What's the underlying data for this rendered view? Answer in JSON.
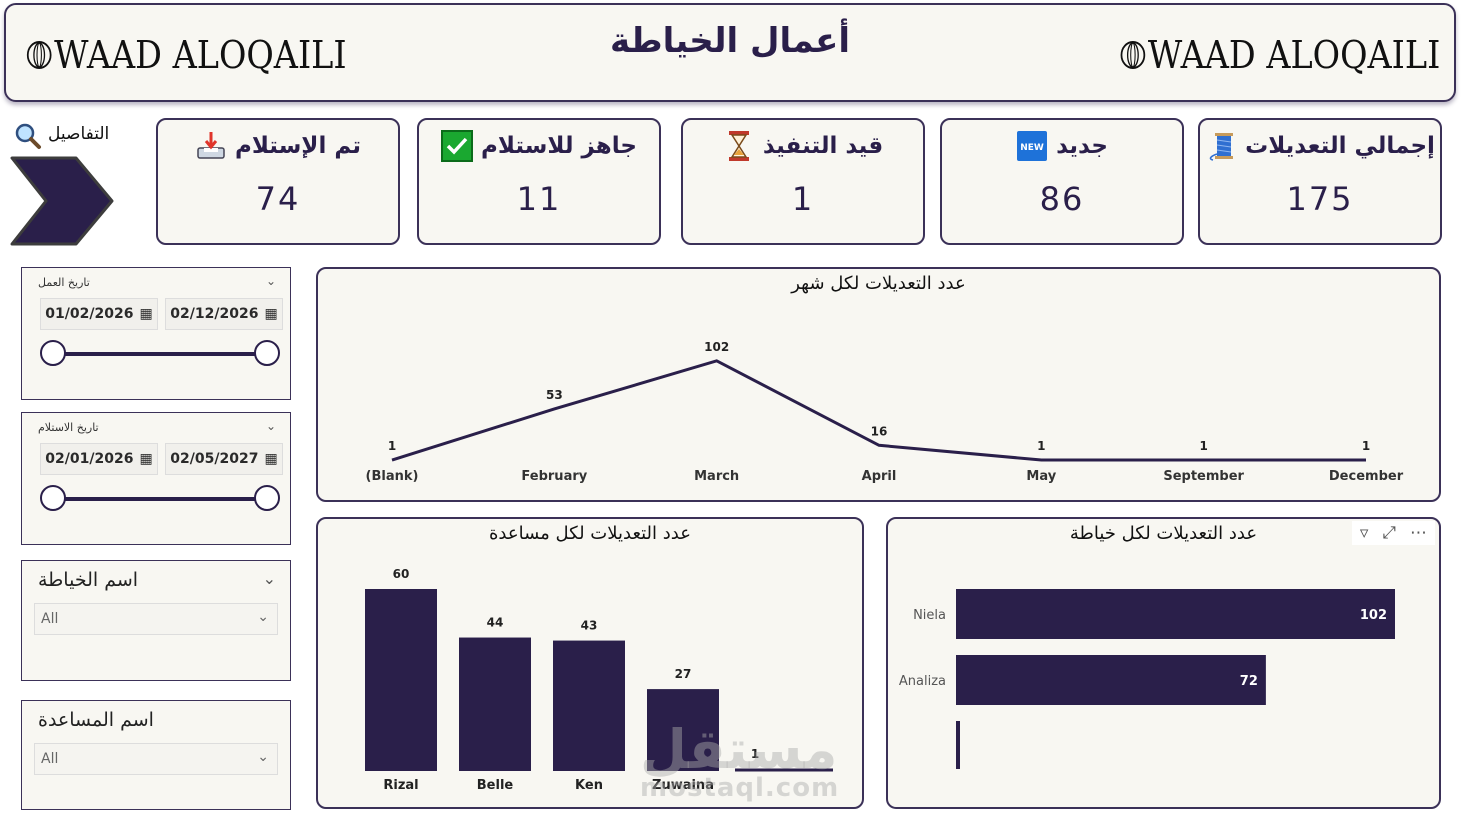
{
  "header": {
    "title": "أعمال الخياطة",
    "logo_left": "WAAD ALOQAILI",
    "logo_right": "WAAD ALOQAILI"
  },
  "details": {
    "label": "التفاصيل"
  },
  "kpis": [
    {
      "label": "تم الإستلام",
      "value": "74",
      "icon": "inbox-tray-icon"
    },
    {
      "label": "جاهز للاستلام",
      "value": "11",
      "icon": "check-box-icon"
    },
    {
      "label": "قيد التنفيذ",
      "value": "1",
      "icon": "hourglass-icon"
    },
    {
      "label": "جديد",
      "value": "86",
      "icon": "new-badge-icon"
    },
    {
      "label": "إجمالي التعديلات",
      "value": "175",
      "icon": "thread-spool-icon"
    }
  ],
  "slicers": {
    "work_date": {
      "label": "تاريخ العمل",
      "from": "01/02/2026",
      "to": "02/12/2026"
    },
    "receive_date": {
      "label": "تاريخ الاستلام",
      "from": "02/01/2026",
      "to": "02/05/2027"
    },
    "tailor": {
      "label": "اسم الخياطة",
      "value": "All"
    },
    "assistant": {
      "label": "اسم المساعدة",
      "value": "All"
    }
  },
  "colors": {
    "primary": "#2a1f4a",
    "panel": "#f8f7f2"
  },
  "chart_data": [
    {
      "type": "line",
      "title": "عدد التعديلات لكل شهر",
      "categories": [
        "(Blank)",
        "February",
        "March",
        "April",
        "May",
        "September",
        "December"
      ],
      "values": [
        1,
        53,
        102,
        16,
        1,
        1,
        1
      ],
      "ylim": [
        0,
        110
      ]
    },
    {
      "type": "bar",
      "title": "عدد التعديلات لكل مساعدة",
      "categories": [
        "Rizal",
        "Belle",
        "Ken",
        "Zuwaina",
        ""
      ],
      "values": [
        60,
        44,
        43,
        27,
        1
      ],
      "ylim": [
        0,
        62
      ]
    },
    {
      "type": "bar",
      "orientation": "horizontal",
      "title": "عدد التعديلات لكل خياطة",
      "categories": [
        "Niela",
        "Analiza",
        ""
      ],
      "values": [
        102,
        72,
        1
      ],
      "xlim": [
        0,
        105
      ]
    }
  ],
  "watermark": {
    "line1": "مستقل",
    "line2": "mostaql.com"
  }
}
